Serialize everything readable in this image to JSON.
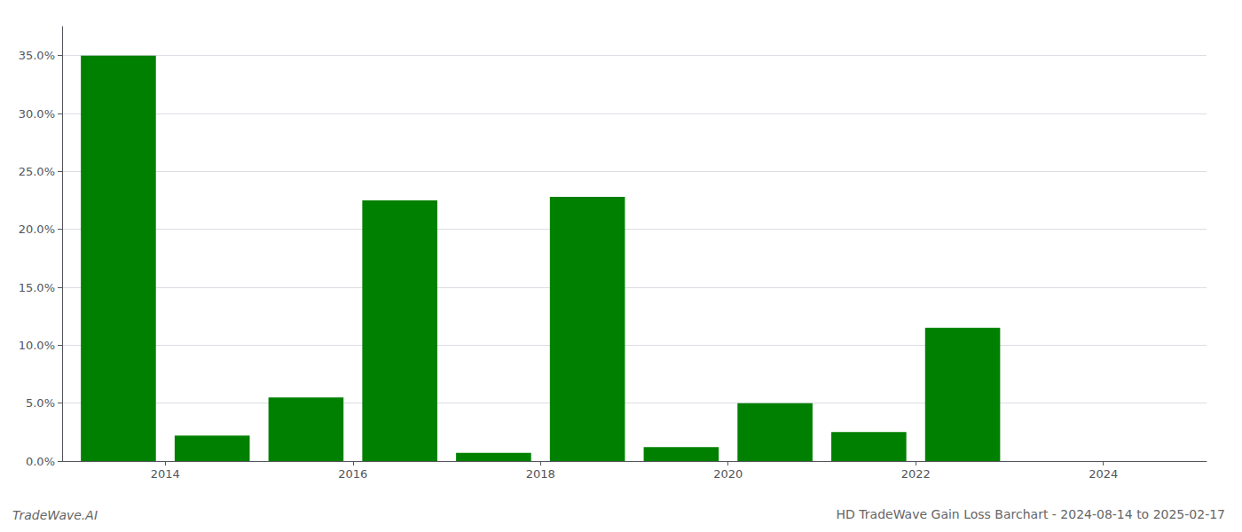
{
  "chart_data": {
    "type": "bar",
    "title": "HD TradeWave Gain Loss Barchart - 2024-08-14 to 2025-02-17",
    "annotations": [
      "TradeWave.AI"
    ],
    "x": [
      2013,
      2014,
      2015,
      2016,
      2017,
      2018,
      2019,
      2020,
      2021,
      2022,
      2023,
      2024
    ],
    "values": [
      0.35,
      0.022,
      0.055,
      0.225,
      0.007,
      0.228,
      0.012,
      0.05,
      0.025,
      0.115,
      0.0,
      0.0
    ],
    "color": "#008000",
    "xlim": [
      2012.4,
      2024.6
    ],
    "xticks": [
      {
        "value": 2013.5,
        "label": "2014"
      },
      {
        "value": 2015.5,
        "label": "2016"
      },
      {
        "value": 2017.5,
        "label": "2018"
      },
      {
        "value": 2019.5,
        "label": "2020"
      },
      {
        "value": 2021.5,
        "label": "2022"
      },
      {
        "value": 2023.5,
        "label": "2024"
      }
    ],
    "ylim": [
      0,
      0.375
    ],
    "yticks": [
      {
        "value": 0.0,
        "label": "0.0%"
      },
      {
        "value": 0.05,
        "label": "5.0%"
      },
      {
        "value": 0.1,
        "label": "10.0%"
      },
      {
        "value": 0.15,
        "label": "15.0%"
      },
      {
        "value": 0.2,
        "label": "20.0%"
      },
      {
        "value": 0.25,
        "label": "25.0%"
      },
      {
        "value": 0.3,
        "label": "30.0%"
      },
      {
        "value": 0.35,
        "label": "35.0%"
      }
    ],
    "grid": true
  }
}
